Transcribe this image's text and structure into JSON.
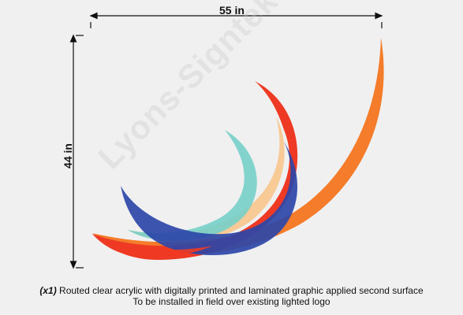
{
  "dimensions": {
    "width_label": "55 in",
    "height_label": "44 in"
  },
  "watermark_text": "Lyons-Signtek",
  "caption": {
    "quantity": "(x1)",
    "line1_rest": "Routed clear acrylic with digitally printed and laminated graphic applied second surface",
    "line2": "To be installed in field over existing lighted logo"
  },
  "colors": {
    "background": "#f0f0f0",
    "red": "#ee3a24",
    "orange": "#f47c2a",
    "peach": "#f8c386",
    "teal": "#77cfc9",
    "blue": "#2c46a8",
    "dimension_line": "#111111"
  }
}
